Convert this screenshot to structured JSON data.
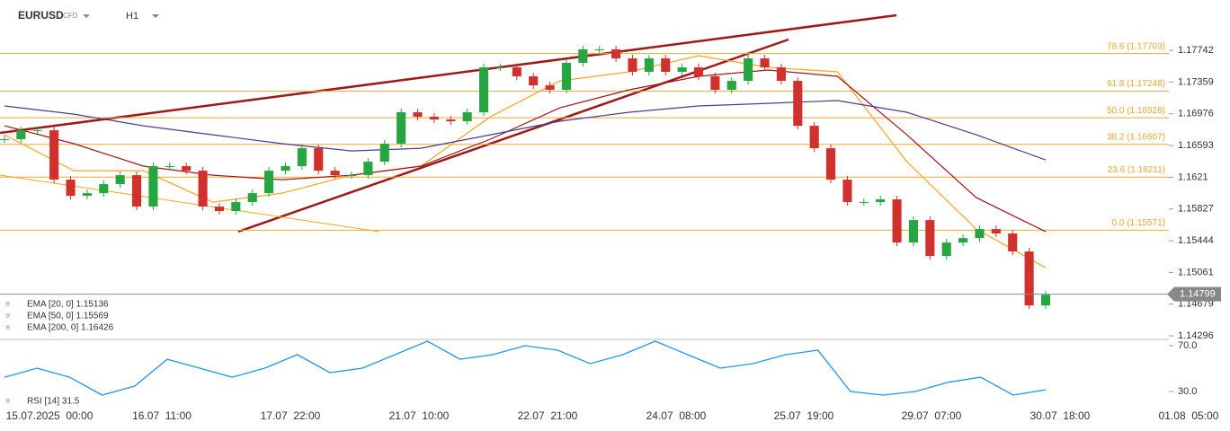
{
  "header": {
    "symbol": "EURUSD",
    "kind": "CFD",
    "timeframe": "H1"
  },
  "chart_data": {
    "type": "candlestick",
    "ylim": [
      1.14253,
      1.18349
    ],
    "yticks": [
      1.17742,
      1.17359,
      1.16976,
      1.16593,
      1.1621,
      1.15827,
      1.15444,
      1.15061,
      1.14679,
      1.14296
    ],
    "current_price": 1.14799,
    "up_color": "#26a641",
    "down_color": "#d0312d",
    "close": [
      1.16669,
      1.16777,
      1.16777,
      1.16181,
      1.15986,
      1.16018,
      1.16127,
      1.16235,
      1.15856,
      1.16344,
      1.16344,
      1.16289,
      1.15856,
      1.15802,
      1.1591,
      1.16018,
      1.16289,
      1.16344,
      1.1656,
      1.16289,
      1.16235,
      1.16235,
      1.16398,
      1.16615,
      1.16994,
      1.1694,
      1.16907,
      1.16886,
      1.16994,
      1.17536,
      1.17536,
      1.17428,
      1.17319,
      1.17265,
      1.1759,
      1.17753,
      1.17753,
      1.17644,
      1.17482,
      1.17644,
      1.17482,
      1.17536,
      1.17428,
      1.17265,
      1.17373,
      1.17644,
      1.17536,
      1.17373,
      1.16831,
      1.1656,
      1.16181,
      1.1591,
      1.1591,
      1.15943,
      1.15422,
      1.15693,
      1.1526,
      1.15422,
      1.15476,
      1.15585,
      1.15531,
      1.15314,
      1.14663,
      1.14793
    ],
    "fib_color": "#f0a830",
    "fib_levels": [
      {
        "value": 1.17703,
        "label": "78.6 (1.17703)"
      },
      {
        "value": 1.17248,
        "label": "61.8 (1.17248)"
      },
      {
        "value": 1.16928,
        "label": "50.0 (1.16928)"
      },
      {
        "value": 1.16607,
        "label": "38.2 (1.16607)"
      },
      {
        "value": 1.16211,
        "label": "23.6 (1.16211)"
      },
      {
        "value": 1.15571,
        "label": "0.0 (1.15571)"
      }
    ],
    "series": [
      {
        "name": "EMA [20, 0] 1.15136",
        "color": "#f5a623",
        "values": [
          1.16723,
          1.16289,
          1.16289,
          1.1591,
          1.16018,
          1.16235,
          1.16344,
          1.1694,
          1.17373,
          1.17482,
          1.17677,
          1.17536,
          1.17482,
          1.16398,
          1.15585,
          1.15119
        ]
      },
      {
        "name": "EMA [50, 0] 1.15569",
        "color": "#a01818",
        "values": [
          1.16831,
          1.16615,
          1.16344,
          1.16235,
          1.16181,
          1.16235,
          1.16344,
          1.16669,
          1.17048,
          1.17265,
          1.17428,
          1.17504,
          1.17428,
          1.16723,
          1.15964,
          1.15553
        ]
      },
      {
        "name": "EMA [200, 0] 1.16426",
        "color": "#4a3c96",
        "values": [
          1.1707,
          1.16972,
          1.16831,
          1.16723,
          1.16615,
          1.16528,
          1.1656,
          1.16723,
          1.16886,
          1.16994,
          1.1707,
          1.17102,
          1.17135,
          1.16994,
          1.16723,
          1.16419
        ]
      }
    ],
    "rsi": {
      "name": "RSI [14] 31.5",
      "color": "#2196f3",
      "ylim": [
        15.1,
        75.5
      ],
      "yticks": [
        {
          "value": 70,
          "label": "70.0"
        },
        {
          "value": 30,
          "label": "30.0"
        }
      ],
      "values": [
        42.5,
        50.4,
        42.5,
        26.9,
        34.7,
        58.2,
        50.4,
        42.5,
        50.4,
        62.2,
        46.5,
        50.4,
        62.2,
        73.9,
        58.2,
        62.2,
        70,
        66.1,
        54.3,
        62.2,
        73.9,
        62.2,
        50.4,
        54.3,
        62.2,
        66.1,
        30,
        26.9,
        30,
        38,
        42.5,
        26.9,
        31.5
      ]
    },
    "x_labels": [
      "15.07.2025  00:00",
      "16.07  11:00",
      "17.07  22:00",
      "21.07  10:00",
      "22.07  21:00",
      "24.07  08:00",
      "25.07  19:00",
      "29.07  07:00",
      "30.07  18:00",
      "01.08  05:00"
    ]
  }
}
